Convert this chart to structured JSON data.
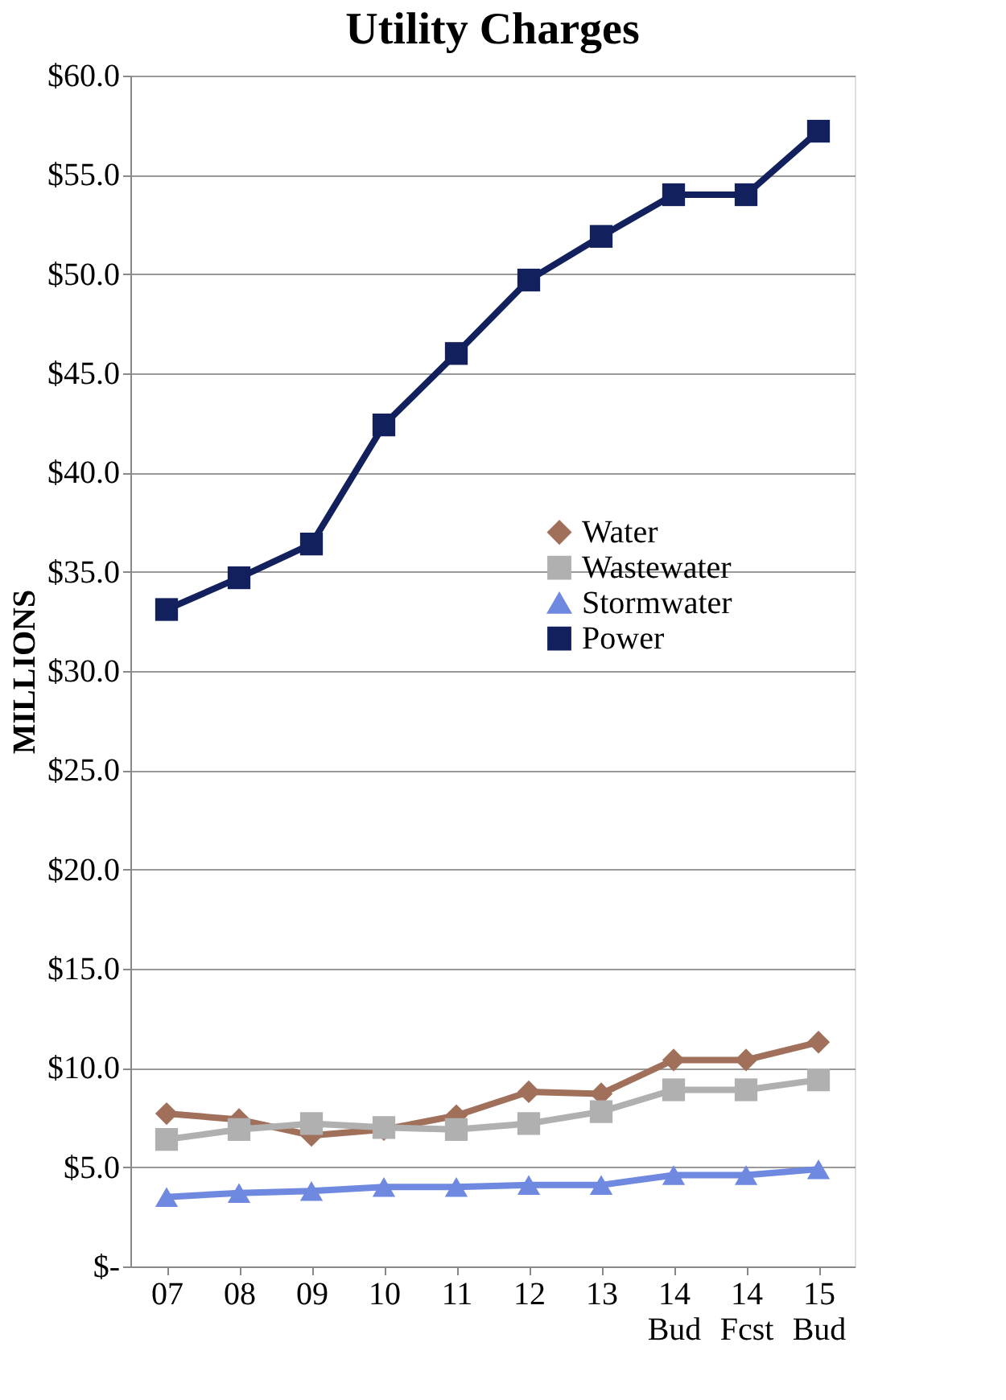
{
  "chart_data": {
    "type": "line",
    "title": "Utility Charges",
    "ylabel": "MILLIONS",
    "categories": [
      "07",
      "08",
      "09",
      "10",
      "11",
      "12",
      "13",
      "14\nBud",
      "14\nFcst",
      "15\nBud"
    ],
    "series": [
      {
        "name": "Water",
        "color": "#a0705a",
        "marker": "diamond",
        "values": [
          7.7,
          7.4,
          6.6,
          6.9,
          7.6,
          8.8,
          8.7,
          10.4,
          10.4,
          11.3
        ]
      },
      {
        "name": "Wastewater",
        "color": "#b0b0b0",
        "marker": "square",
        "values": [
          6.4,
          6.9,
          7.2,
          7.0,
          6.9,
          7.2,
          7.8,
          8.9,
          8.9,
          9.4
        ]
      },
      {
        "name": "Stormwater",
        "color": "#6f88e0",
        "marker": "triangle",
        "values": [
          3.5,
          3.7,
          3.8,
          4.0,
          4.0,
          4.1,
          4.1,
          4.6,
          4.6,
          4.9
        ]
      },
      {
        "name": "Power",
        "color": "#13205e",
        "marker": "square",
        "values": [
          33.1,
          34.7,
          36.4,
          42.4,
          46.0,
          49.7,
          51.9,
          54.0,
          54.0,
          57.2
        ]
      }
    ],
    "ylim": [
      0,
      60
    ],
    "yticks": [
      {
        "value": 0,
        "label": "$-"
      },
      {
        "value": 5,
        "label": "$5.0"
      },
      {
        "value": 10,
        "label": "$10.0"
      },
      {
        "value": 15,
        "label": "$15.0"
      },
      {
        "value": 20,
        "label": "$20.0"
      },
      {
        "value": 25,
        "label": "$25.0"
      },
      {
        "value": 30,
        "label": "$30.0"
      },
      {
        "value": 35,
        "label": "$35.0"
      },
      {
        "value": 40,
        "label": "$40.0"
      },
      {
        "value": 45,
        "label": "$45.0"
      },
      {
        "value": 50,
        "label": "$50.0"
      },
      {
        "value": 55,
        "label": "$55.0"
      },
      {
        "value": 60,
        "label": "$60.0"
      }
    ],
    "grid": "y",
    "legend": "right",
    "line_style": "solid"
  }
}
